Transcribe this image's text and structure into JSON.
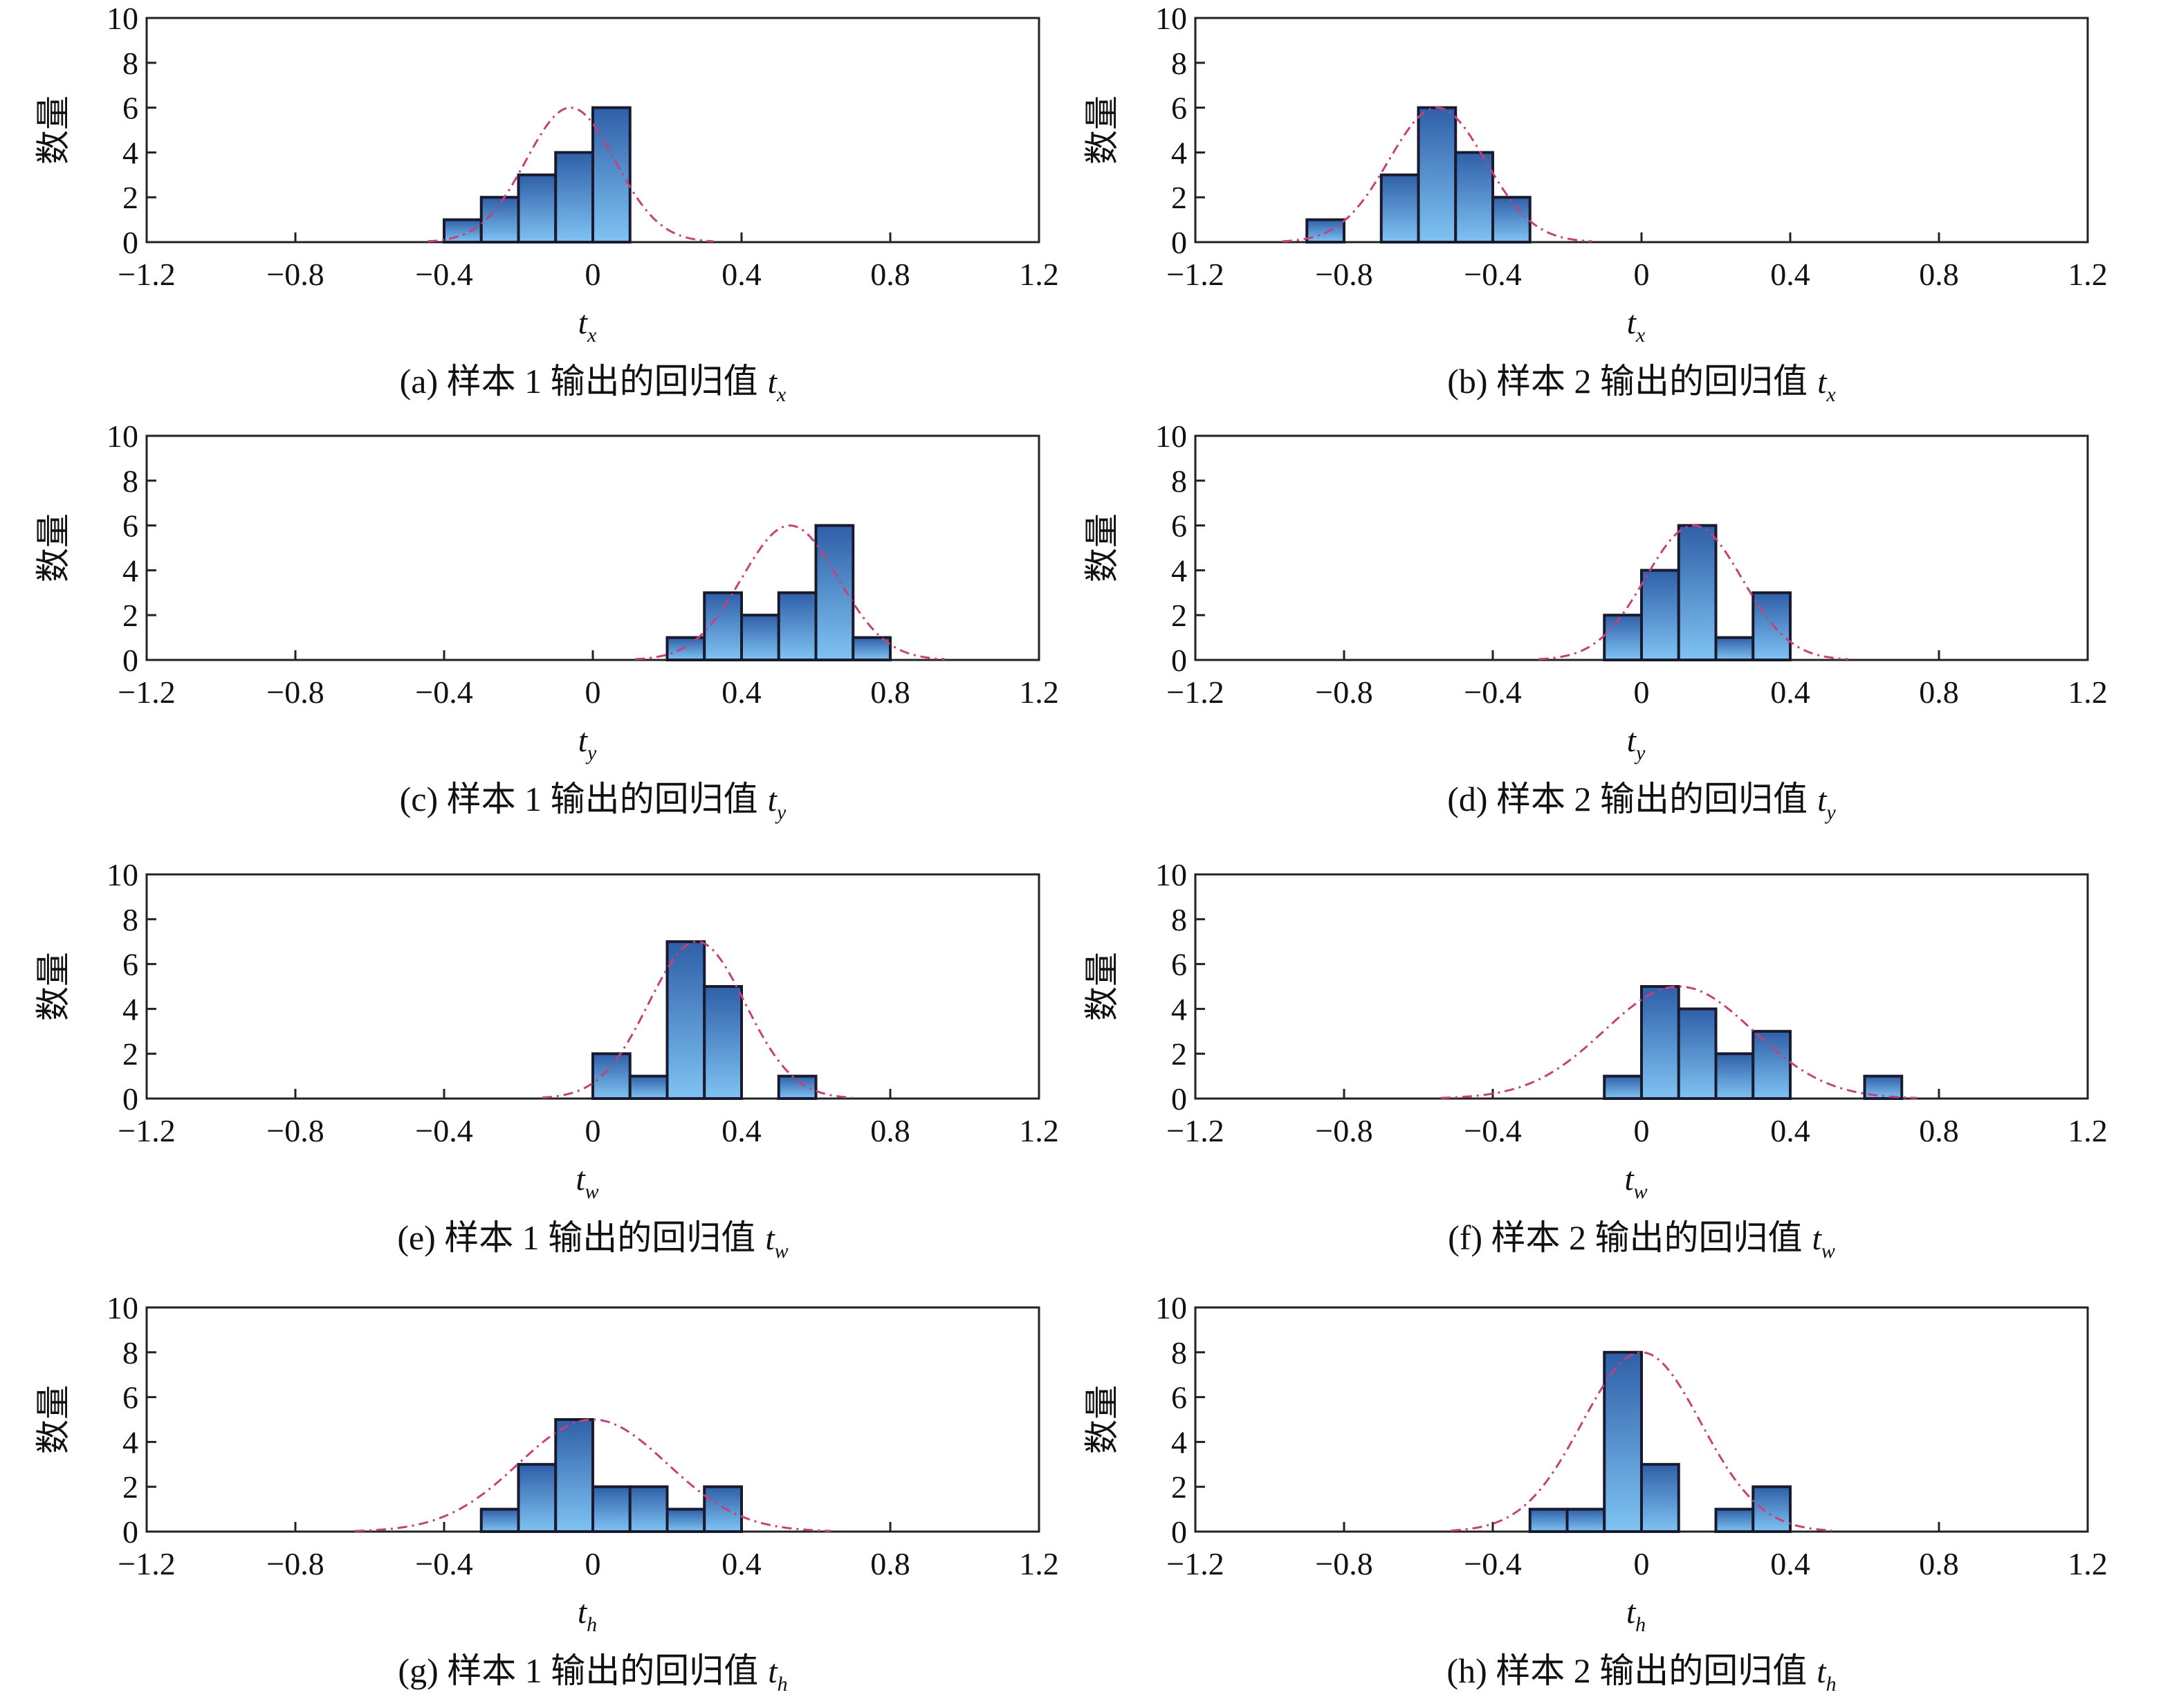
{
  "colors": {
    "bar_top": "#2f5fa8",
    "bar_bottom": "#7fc3f3",
    "bar_edge": "#1a1a2e",
    "fit_curve": "#c8407a",
    "axis": "#222222"
  },
  "chart_data": [
    {
      "type": "bar",
      "panel": "a",
      "caption": "(a) 样本 1 输出的回归值",
      "caption_var": "t",
      "caption_sub": "x",
      "ylabel": "数量",
      "xlabel_var": "t",
      "xlabel_sub": "x",
      "xlim": [
        -1.2,
        1.2
      ],
      "ylim": [
        0,
        10
      ],
      "xticks": [
        "−1.2",
        "−0.8",
        "−0.4",
        "0",
        "0.4",
        "0.8",
        "1.2"
      ],
      "yticks": [
        "0",
        "2",
        "4",
        "6",
        "8",
        "10"
      ],
      "bin_width": 0.1,
      "bins": [
        {
          "x": -0.35,
          "count": 1
        },
        {
          "x": -0.25,
          "count": 2
        },
        {
          "x": -0.15,
          "count": 3
        },
        {
          "x": -0.05,
          "count": 4
        },
        {
          "x": 0.05,
          "count": 6
        }
      ],
      "fit": {
        "mean": -0.06,
        "sd": 0.12,
        "peak": 6
      }
    },
    {
      "type": "bar",
      "panel": "b",
      "caption": "(b) 样本 2 输出的回归值",
      "caption_var": "t",
      "caption_sub": "x",
      "ylabel": "数量",
      "xlabel_var": "t",
      "xlabel_sub": "x",
      "xlim": [
        -1.2,
        1.2
      ],
      "ylim": [
        0,
        10
      ],
      "xticks": [
        "−1.2",
        "−0.8",
        "−0.4",
        "0",
        "0.4",
        "0.8",
        "1.2"
      ],
      "yticks": [
        "0",
        "2",
        "4",
        "6",
        "8",
        "10"
      ],
      "bin_width": 0.1,
      "bins": [
        {
          "x": -0.85,
          "count": 1
        },
        {
          "x": -0.65,
          "count": 3
        },
        {
          "x": -0.55,
          "count": 6
        },
        {
          "x": -0.45,
          "count": 4
        },
        {
          "x": -0.35,
          "count": 2
        }
      ],
      "fit": {
        "mean": -0.55,
        "sd": 0.13,
        "peak": 6
      }
    },
    {
      "type": "bar",
      "panel": "c",
      "caption": "(c) 样本 1 输出的回归值",
      "caption_var": "t",
      "caption_sub": "y",
      "ylabel": "数量",
      "xlabel_var": "t",
      "xlabel_sub": "y",
      "xlim": [
        -1.2,
        1.2
      ],
      "ylim": [
        0,
        10
      ],
      "xticks": [
        "−1.2",
        "−0.8",
        "−0.4",
        "0",
        "0.4",
        "0.8",
        "1.2"
      ],
      "yticks": [
        "0",
        "2",
        "4",
        "6",
        "8",
        "10"
      ],
      "bin_width": 0.1,
      "bins": [
        {
          "x": 0.25,
          "count": 1
        },
        {
          "x": 0.35,
          "count": 3
        },
        {
          "x": 0.45,
          "count": 2
        },
        {
          "x": 0.55,
          "count": 3
        },
        {
          "x": 0.65,
          "count": 6
        },
        {
          "x": 0.75,
          "count": 1
        }
      ],
      "fit": {
        "mean": 0.53,
        "sd": 0.13,
        "peak": 6
      }
    },
    {
      "type": "bar",
      "panel": "d",
      "caption": "(d) 样本 2 输出的回归值",
      "caption_var": "t",
      "caption_sub": "y",
      "ylabel": "数量",
      "xlabel_var": "t",
      "xlabel_sub": "y",
      "xlim": [
        -1.2,
        1.2
      ],
      "ylim": [
        0,
        10
      ],
      "xticks": [
        "−1.2",
        "−0.8",
        "−0.4",
        "0",
        "0.4",
        "0.8",
        "1.2"
      ],
      "yticks": [
        "0",
        "2",
        "4",
        "6",
        "8",
        "10"
      ],
      "bin_width": 0.1,
      "bins": [
        {
          "x": -0.05,
          "count": 2
        },
        {
          "x": 0.05,
          "count": 4
        },
        {
          "x": 0.15,
          "count": 6
        },
        {
          "x": 0.25,
          "count": 1
        },
        {
          "x": 0.35,
          "count": 3
        }
      ],
      "fit": {
        "mean": 0.14,
        "sd": 0.13,
        "peak": 6
      }
    },
    {
      "type": "bar",
      "panel": "e",
      "caption": "(e) 样本 1 输出的回归值",
      "caption_var": "t",
      "caption_sub": "w",
      "ylabel": "数量",
      "xlabel_var": "t",
      "xlabel_sub": "w",
      "xlim": [
        -1.2,
        1.2
      ],
      "ylim": [
        0,
        10
      ],
      "xticks": [
        "−1.2",
        "−0.8",
        "−0.4",
        "0",
        "0.4",
        "0.8",
        "1.2"
      ],
      "yticks": [
        "0",
        "2",
        "4",
        "6",
        "8",
        "10"
      ],
      "bin_width": 0.1,
      "bins": [
        {
          "x": 0.05,
          "count": 2
        },
        {
          "x": 0.15,
          "count": 1
        },
        {
          "x": 0.25,
          "count": 7
        },
        {
          "x": 0.35,
          "count": 5
        },
        {
          "x": 0.55,
          "count": 1
        }
      ],
      "fit": {
        "mean": 0.28,
        "sd": 0.13,
        "peak": 7
      }
    },
    {
      "type": "bar",
      "panel": "f",
      "caption": "(f) 样本 2 输出的回归值",
      "caption_var": "t",
      "caption_sub": "w",
      "ylabel": "数量",
      "xlabel_var": "t",
      "xlabel_sub": "w",
      "xlim": [
        -1.2,
        1.2
      ],
      "ylim": [
        0,
        10
      ],
      "xticks": [
        "−1.2",
        "−0.8",
        "−0.4",
        "0",
        "0.4",
        "0.8",
        "1.2"
      ],
      "yticks": [
        "0",
        "2",
        "4",
        "6",
        "8",
        "10"
      ],
      "bin_width": 0.1,
      "bins": [
        {
          "x": -0.05,
          "count": 1
        },
        {
          "x": 0.05,
          "count": 5
        },
        {
          "x": 0.15,
          "count": 4
        },
        {
          "x": 0.25,
          "count": 2
        },
        {
          "x": 0.35,
          "count": 3
        },
        {
          "x": 0.65,
          "count": 1
        }
      ],
      "fit": {
        "mean": 0.1,
        "sd": 0.2,
        "peak": 5
      }
    },
    {
      "type": "bar",
      "panel": "g",
      "caption": "(g) 样本 1 输出的回归值",
      "caption_var": "t",
      "caption_sub": "h",
      "ylabel": "数量",
      "xlabel_var": "t",
      "xlabel_sub": "h",
      "xlim": [
        -1.2,
        1.2
      ],
      "ylim": [
        0,
        10
      ],
      "xticks": [
        "−1.2",
        "−0.8",
        "−0.4",
        "0",
        "0.4",
        "0.8",
        "1.2"
      ],
      "yticks": [
        "0",
        "2",
        "4",
        "6",
        "8",
        "10"
      ],
      "bin_width": 0.1,
      "bins": [
        {
          "x": -0.25,
          "count": 1
        },
        {
          "x": -0.15,
          "count": 3
        },
        {
          "x": -0.05,
          "count": 5
        },
        {
          "x": 0.05,
          "count": 2
        },
        {
          "x": 0.15,
          "count": 2
        },
        {
          "x": 0.25,
          "count": 1
        },
        {
          "x": 0.35,
          "count": 2
        }
      ],
      "fit": {
        "mean": 0.0,
        "sd": 0.2,
        "peak": 5
      }
    },
    {
      "type": "bar",
      "panel": "h",
      "caption": "(h) 样本 2 输出的回归值",
      "caption_var": "t",
      "caption_sub": "h",
      "ylabel": "数量",
      "xlabel_var": "t",
      "xlabel_sub": "h",
      "xlim": [
        -1.2,
        1.2
      ],
      "ylim": [
        0,
        10
      ],
      "xticks": [
        "−1.2",
        "−0.8",
        "−0.4",
        "0",
        "0.4",
        "0.8",
        "1.2"
      ],
      "yticks": [
        "0",
        "2",
        "4",
        "6",
        "8",
        "10"
      ],
      "bin_width": 0.1,
      "bins": [
        {
          "x": -0.25,
          "count": 1
        },
        {
          "x": -0.15,
          "count": 1
        },
        {
          "x": -0.05,
          "count": 8
        },
        {
          "x": 0.05,
          "count": 3
        },
        {
          "x": 0.25,
          "count": 1
        },
        {
          "x": 0.35,
          "count": 2
        }
      ],
      "fit": {
        "mean": 0.0,
        "sd": 0.16,
        "peak": 8
      }
    }
  ]
}
